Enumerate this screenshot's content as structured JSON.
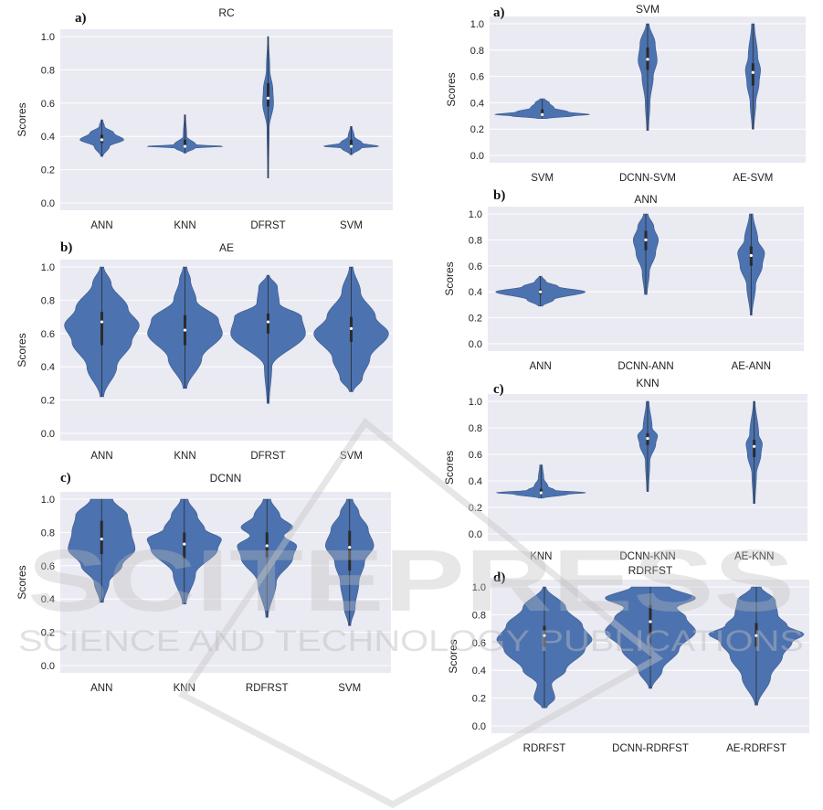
{
  "watermark": {
    "title": "SCITEPRESS",
    "subtitle": "SCIENCE AND TECHNOLOGY PUBLICATIONS"
  },
  "colors": {
    "violin": "#4c72b0",
    "plot_bg": "#eaeaf2",
    "grid": "#ffffff"
  },
  "chart_data": [
    {
      "id": "rc",
      "type": "violin",
      "panel_letter": "a)",
      "title": "RC",
      "ylabel": "Scores",
      "ylim": [
        0.0,
        1.0
      ],
      "yticks": [
        "0.0",
        "0.2",
        "0.4",
        "0.6",
        "0.8",
        "1.0"
      ],
      "grid": true,
      "categories": [
        "ANN",
        "KNN",
        "DFRST",
        "SVM"
      ],
      "series": [
        {
          "range": [
            0.28,
            0.5
          ],
          "median": 0.38,
          "q1": 0.36,
          "q3": 0.41,
          "profile": [
            [
              0.28,
              0.05
            ],
            [
              0.34,
              0.35
            ],
            [
              0.38,
              1.0
            ],
            [
              0.42,
              0.55
            ],
            [
              0.46,
              0.12
            ],
            [
              0.5,
              0.04
            ]
          ]
        },
        {
          "range": [
            0.3,
            0.53
          ],
          "median": 0.34,
          "q1": 0.33,
          "q3": 0.38,
          "profile": [
            [
              0.3,
              0.05
            ],
            [
              0.33,
              0.45
            ],
            [
              0.34,
              1.8
            ],
            [
              0.35,
              0.5
            ],
            [
              0.4,
              0.08
            ],
            [
              0.53,
              0.03
            ]
          ]
        },
        {
          "range": [
            0.15,
            1.0
          ],
          "median": 0.63,
          "q1": 0.58,
          "q3": 0.72,
          "profile": [
            [
              0.15,
              0.02
            ],
            [
              0.45,
              0.05
            ],
            [
              0.6,
              0.25
            ],
            [
              0.68,
              0.22
            ],
            [
              0.8,
              0.08
            ],
            [
              1.0,
              0.02
            ]
          ]
        },
        {
          "range": [
            0.29,
            0.46
          ],
          "median": 0.34,
          "q1": 0.33,
          "q3": 0.38,
          "profile": [
            [
              0.29,
              0.05
            ],
            [
              0.33,
              0.45
            ],
            [
              0.34,
              1.25
            ],
            [
              0.36,
              0.5
            ],
            [
              0.4,
              0.14
            ],
            [
              0.46,
              0.04
            ]
          ]
        }
      ]
    },
    {
      "id": "ae",
      "type": "violin",
      "panel_letter": "b)",
      "title": "AE",
      "ylabel": "Scores",
      "ylim": [
        0.0,
        1.0
      ],
      "yticks": [
        "0.0",
        "0.2",
        "0.4",
        "0.6",
        "0.8",
        "1.0"
      ],
      "grid": true,
      "categories": [
        "ANN",
        "KNN",
        "DFRST",
        "SVM"
      ],
      "series": [
        {
          "range": [
            0.22,
            1.0
          ],
          "median": 0.67,
          "q1": 0.53,
          "q3": 0.73,
          "profile": [
            [
              0.22,
              0.05
            ],
            [
              0.4,
              0.4
            ],
            [
              0.55,
              0.8
            ],
            [
              0.65,
              1.0
            ],
            [
              0.75,
              0.7
            ],
            [
              0.9,
              0.25
            ],
            [
              1.0,
              0.05
            ]
          ]
        },
        {
          "range": [
            0.27,
            1.0
          ],
          "median": 0.62,
          "q1": 0.53,
          "q3": 0.71,
          "profile": [
            [
              0.27,
              0.05
            ],
            [
              0.45,
              0.45
            ],
            [
              0.6,
              1.0
            ],
            [
              0.68,
              0.9
            ],
            [
              0.8,
              0.3
            ],
            [
              0.92,
              0.15
            ],
            [
              1.0,
              0.05
            ]
          ]
        },
        {
          "range": [
            0.18,
            0.95
          ],
          "median": 0.67,
          "q1": 0.6,
          "q3": 0.72,
          "profile": [
            [
              0.18,
              0.03
            ],
            [
              0.4,
              0.1
            ],
            [
              0.6,
              1.0
            ],
            [
              0.7,
              0.9
            ],
            [
              0.78,
              0.3
            ],
            [
              0.88,
              0.25
            ],
            [
              0.95,
              0.03
            ]
          ]
        },
        {
          "range": [
            0.25,
            1.0
          ],
          "median": 0.63,
          "q1": 0.55,
          "q3": 0.7,
          "profile": [
            [
              0.25,
              0.05
            ],
            [
              0.33,
              0.3
            ],
            [
              0.45,
              0.5
            ],
            [
              0.6,
              1.0
            ],
            [
              0.7,
              0.65
            ],
            [
              0.85,
              0.25
            ],
            [
              1.0,
              0.05
            ]
          ]
        }
      ]
    },
    {
      "id": "dcnn",
      "type": "violin",
      "panel_letter": "c)",
      "title": "DCNN",
      "ylabel": "Scores",
      "ylim": [
        0.0,
        1.0
      ],
      "yticks": [
        "0.0",
        "0.2",
        "0.4",
        "0.6",
        "0.8",
        "1.0"
      ],
      "grid": true,
      "categories": [
        "ANN",
        "KNN",
        "RDFRST",
        "SVM"
      ],
      "series": [
        {
          "range": [
            0.38,
            1.0
          ],
          "median": 0.76,
          "q1": 0.67,
          "q3": 0.87,
          "profile": [
            [
              0.38,
              0.05
            ],
            [
              0.5,
              0.2
            ],
            [
              0.6,
              0.55
            ],
            [
              0.7,
              0.9
            ],
            [
              0.8,
              0.8
            ],
            [
              0.9,
              0.7
            ],
            [
              1.0,
              0.3
            ]
          ]
        },
        {
          "range": [
            0.37,
            1.0
          ],
          "median": 0.73,
          "q1": 0.64,
          "q3": 0.8,
          "profile": [
            [
              0.37,
              0.05
            ],
            [
              0.55,
              0.3
            ],
            [
              0.7,
              0.9
            ],
            [
              0.76,
              1.0
            ],
            [
              0.82,
              0.55
            ],
            [
              0.9,
              0.35
            ],
            [
              1.0,
              0.1
            ]
          ]
        },
        {
          "range": [
            0.29,
            1.0
          ],
          "median": 0.72,
          "q1": 0.65,
          "q3": 0.8,
          "profile": [
            [
              0.29,
              0.03
            ],
            [
              0.5,
              0.25
            ],
            [
              0.65,
              0.7
            ],
            [
              0.72,
              0.8
            ],
            [
              0.78,
              0.45
            ],
            [
              0.83,
              0.7
            ],
            [
              0.9,
              0.35
            ],
            [
              1.0,
              0.1
            ]
          ]
        },
        {
          "range": [
            0.24,
            1.0
          ],
          "median": 0.71,
          "q1": 0.57,
          "q3": 0.81,
          "profile": [
            [
              0.24,
              0.03
            ],
            [
              0.35,
              0.15
            ],
            [
              0.5,
              0.25
            ],
            [
              0.62,
              0.4
            ],
            [
              0.72,
              0.65
            ],
            [
              0.82,
              0.5
            ],
            [
              0.92,
              0.25
            ],
            [
              1.0,
              0.08
            ]
          ]
        }
      ]
    },
    {
      "id": "svm",
      "type": "violin",
      "panel_letter": "a)",
      "title": "SVM",
      "ylabel": "Scores",
      "ylim": [
        0.0,
        1.0
      ],
      "yticks": [
        "0.0",
        "0.2",
        "0.4",
        "0.6",
        "0.8",
        "1.0"
      ],
      "grid": true,
      "categories": [
        "SVM",
        "DCNN-SVM",
        "AE-SVM"
      ],
      "series": [
        {
          "range": [
            0.28,
            0.43
          ],
          "median": 0.31,
          "q1": 0.3,
          "q3": 0.35,
          "profile": [
            [
              0.28,
              0.1
            ],
            [
              0.3,
              0.65
            ],
            [
              0.31,
              1.0
            ],
            [
              0.33,
              0.55
            ],
            [
              0.36,
              0.25
            ],
            [
              0.4,
              0.15
            ],
            [
              0.43,
              0.05
            ]
          ]
        },
        {
          "range": [
            0.19,
            1.0
          ],
          "median": 0.73,
          "q1": 0.65,
          "q3": 0.82,
          "profile": [
            [
              0.19,
              0.02
            ],
            [
              0.4,
              0.05
            ],
            [
              0.6,
              0.12
            ],
            [
              0.72,
              0.2
            ],
            [
              0.85,
              0.16
            ],
            [
              1.0,
              0.03
            ]
          ]
        },
        {
          "range": [
            0.2,
            1.0
          ],
          "median": 0.63,
          "q1": 0.53,
          "q3": 0.7,
          "profile": [
            [
              0.2,
              0.02
            ],
            [
              0.4,
              0.06
            ],
            [
              0.55,
              0.13
            ],
            [
              0.65,
              0.16
            ],
            [
              0.75,
              0.1
            ],
            [
              1.0,
              0.03
            ]
          ]
        }
      ]
    },
    {
      "id": "ann",
      "type": "violin",
      "panel_letter": "b)",
      "title": "ANN",
      "ylabel": "Scores",
      "ylim": [
        0.0,
        1.0
      ],
      "yticks": [
        "0.0",
        "0.2",
        "0.4",
        "0.6",
        "0.8",
        "1.0"
      ],
      "grid": true,
      "categories": [
        "ANN",
        "DCNN-ANN",
        "AE-ANN"
      ],
      "series": [
        {
          "range": [
            0.29,
            0.52
          ],
          "median": 0.4,
          "q1": 0.38,
          "q3": 0.42,
          "profile": [
            [
              0.29,
              0.05
            ],
            [
              0.34,
              0.3
            ],
            [
              0.4,
              1.0
            ],
            [
              0.44,
              0.4
            ],
            [
              0.48,
              0.12
            ],
            [
              0.52,
              0.03
            ]
          ]
        },
        {
          "range": [
            0.38,
            1.0
          ],
          "median": 0.8,
          "q1": 0.72,
          "q3": 0.87,
          "profile": [
            [
              0.38,
              0.03
            ],
            [
              0.55,
              0.08
            ],
            [
              0.7,
              0.22
            ],
            [
              0.8,
              0.28
            ],
            [
              0.9,
              0.18
            ],
            [
              1.0,
              0.05
            ]
          ]
        },
        {
          "range": [
            0.22,
            1.0
          ],
          "median": 0.68,
          "q1": 0.6,
          "q3": 0.75,
          "profile": [
            [
              0.22,
              0.02
            ],
            [
              0.45,
              0.1
            ],
            [
              0.6,
              0.25
            ],
            [
              0.7,
              0.3
            ],
            [
              0.8,
              0.15
            ],
            [
              1.0,
              0.04
            ]
          ]
        }
      ]
    },
    {
      "id": "knn",
      "type": "violin",
      "panel_letter": "c)",
      "title": "KNN",
      "ylabel": "Scores",
      "ylim": [
        0.0,
        1.0
      ],
      "yticks": [
        "0.0",
        "0.2",
        "0.4",
        "0.6",
        "0.8",
        "1.0"
      ],
      "grid": true,
      "categories": [
        "KNN",
        "DCNN-KNN",
        "AE-KNN"
      ],
      "series": [
        {
          "range": [
            0.27,
            0.52
          ],
          "median": 0.31,
          "q1": 0.3,
          "q3": 0.34,
          "profile": [
            [
              0.27,
              0.05
            ],
            [
              0.3,
              0.6
            ],
            [
              0.31,
              1.0
            ],
            [
              0.33,
              0.3
            ],
            [
              0.36,
              0.15
            ],
            [
              0.42,
              0.06
            ],
            [
              0.52,
              0.03
            ]
          ]
        },
        {
          "range": [
            0.32,
            1.0
          ],
          "median": 0.72,
          "q1": 0.67,
          "q3": 0.76,
          "profile": [
            [
              0.32,
              0.02
            ],
            [
              0.55,
              0.05
            ],
            [
              0.68,
              0.18
            ],
            [
              0.74,
              0.22
            ],
            [
              0.8,
              0.1
            ],
            [
              1.0,
              0.03
            ]
          ]
        },
        {
          "range": [
            0.23,
            1.0
          ],
          "median": 0.66,
          "q1": 0.58,
          "q3": 0.71,
          "profile": [
            [
              0.23,
              0.02
            ],
            [
              0.45,
              0.05
            ],
            [
              0.6,
              0.15
            ],
            [
              0.68,
              0.18
            ],
            [
              0.75,
              0.1
            ],
            [
              1.0,
              0.02
            ]
          ]
        }
      ]
    },
    {
      "id": "rdrfst",
      "type": "violin",
      "panel_letter": "d)",
      "title": "RDRFST",
      "ylabel": "Scores",
      "ylim": [
        0.0,
        1.0
      ],
      "yticks": [
        "0.0",
        "0.2",
        "0.4",
        "0.6",
        "0.8",
        "1.0"
      ],
      "grid": true,
      "categories": [
        "RDRFST",
        "DCNN-RDRFST",
        "AE-RDRFST"
      ],
      "series": [
        {
          "range": [
            0.13,
            1.0
          ],
          "median": 0.65,
          "q1": 0.57,
          "q3": 0.72,
          "profile": [
            [
              0.13,
              0.05
            ],
            [
              0.2,
              0.22
            ],
            [
              0.3,
              0.15
            ],
            [
              0.4,
              0.45
            ],
            [
              0.55,
              0.85
            ],
            [
              0.62,
              1.0
            ],
            [
              0.72,
              0.8
            ],
            [
              0.85,
              0.45
            ],
            [
              1.0,
              0.03
            ]
          ]
        },
        {
          "range": [
            0.27,
            1.0
          ],
          "median": 0.75,
          "q1": 0.65,
          "q3": 0.87,
          "profile": [
            [
              0.27,
              0.03
            ],
            [
              0.4,
              0.25
            ],
            [
              0.55,
              0.6
            ],
            [
              0.68,
              0.95
            ],
            [
              0.78,
              0.75
            ],
            [
              0.85,
              0.55
            ],
            [
              0.92,
              0.95
            ],
            [
              1.0,
              0.4
            ]
          ]
        },
        {
          "range": [
            0.15,
            1.0
          ],
          "median": 0.65,
          "q1": 0.57,
          "q3": 0.74,
          "profile": [
            [
              0.15,
              0.03
            ],
            [
              0.35,
              0.3
            ],
            [
              0.5,
              0.55
            ],
            [
              0.6,
              0.75
            ],
            [
              0.66,
              1.0
            ],
            [
              0.72,
              0.65
            ],
            [
              0.8,
              0.45
            ],
            [
              0.9,
              0.4
            ],
            [
              1.0,
              0.1
            ]
          ]
        }
      ]
    }
  ]
}
